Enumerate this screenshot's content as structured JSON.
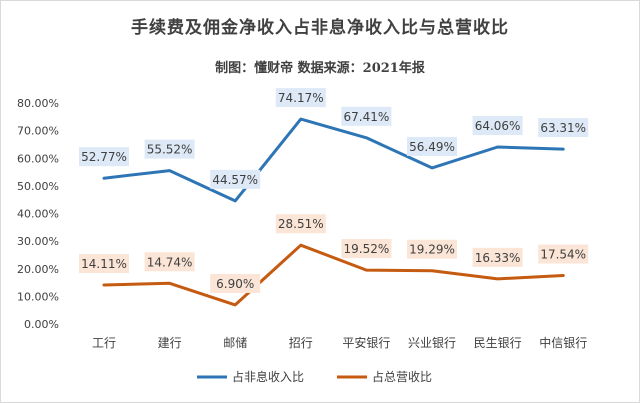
{
  "chart_data": {
    "type": "line",
    "title": "手续费及佣金净收入占非息净收入比与总营收比",
    "subtitle": "制图：懂财帝   数据来源：2021年报",
    "categories": [
      "工行",
      "建行",
      "邮储",
      "招行",
      "平安银行",
      "兴业银行",
      "民生银行",
      "中信银行"
    ],
    "y_ticks": [
      "0.00%",
      "10.00%",
      "20.00%",
      "30.00%",
      "40.00%",
      "50.00%",
      "60.00%",
      "70.00%",
      "80.00%"
    ],
    "ylim": [
      0,
      80
    ],
    "grid": false,
    "legend_position": "bottom",
    "series": [
      {
        "name": "占非息收入比",
        "color": "#2e75b6",
        "label_bg": "#dde9f6",
        "values": [
          52.77,
          55.52,
          44.57,
          74.17,
          67.41,
          56.49,
          64.06,
          63.31
        ],
        "labels": [
          "52.77%",
          "55.52%",
          "44.57%",
          "74.17%",
          "67.41%",
          "56.49%",
          "64.06%",
          "63.31%"
        ]
      },
      {
        "name": "占总营收比",
        "color": "#c55a11",
        "label_bg": "#fbe5d6",
        "values": [
          14.11,
          14.74,
          6.9,
          28.51,
          19.52,
          19.29,
          16.33,
          17.54
        ],
        "labels": [
          "14.11%",
          "14.74%",
          "6.90%",
          "28.51%",
          "19.52%",
          "19.29%",
          "16.33%",
          "17.54%"
        ]
      }
    ]
  }
}
